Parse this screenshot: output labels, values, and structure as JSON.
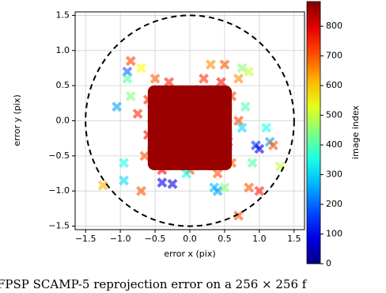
{
  "chart_data": {
    "type": "scatter",
    "xlabel": "error x (pix)",
    "ylabel": "error y (pix)",
    "xlim": [
      -1.65,
      1.65
    ],
    "ylim": [
      -1.55,
      1.55
    ],
    "xticks": [
      {
        "value": -1.5,
        "label": "−1.5"
      },
      {
        "value": -1.0,
        "label": "−1.0"
      },
      {
        "value": -0.5,
        "label": "−0.5"
      },
      {
        "value": 0.0,
        "label": "0.0"
      },
      {
        "value": 0.5,
        "label": "0.5"
      },
      {
        "value": 1.0,
        "label": "1.0"
      },
      {
        "value": 1.5,
        "label": "1.5"
      }
    ],
    "yticks": [
      {
        "value": -1.5,
        "label": "−1.5"
      },
      {
        "value": -1.0,
        "label": "−1.0"
      },
      {
        "value": -0.5,
        "label": "−0.5"
      },
      {
        "value": 0.0,
        "label": "0.0"
      },
      {
        "value": 0.5,
        "label": "0.5"
      },
      {
        "value": 1.0,
        "label": "1.0"
      },
      {
        "value": 1.5,
        "label": "1.5"
      }
    ],
    "grid": true,
    "reference_circle_radius": 1.5,
    "colorbar": {
      "label": "image index",
      "colormap": "jet",
      "clim": [
        0,
        883
      ],
      "ticks": [
        0,
        100,
        200,
        300,
        400,
        500,
        600,
        700,
        800
      ]
    },
    "points": {
      "x": [
        -0.4,
        -0.2,
        0,
        0.2,
        0.4,
        -0.4,
        -0.2,
        0,
        0.2,
        0.4,
        -0.4,
        -0.2,
        0,
        0.2,
        0.4,
        -0.4,
        -0.2,
        0,
        0.2,
        0.4,
        -0.4,
        -0.2,
        0,
        0.2,
        0.4,
        -0.6,
        -0.6,
        -0.65,
        0.6,
        0.55,
        0.6,
        -0.3,
        0.2,
        0,
        -0.4,
        0.4,
        -0.75,
        0.7,
        -0.5,
        0.45,
        -0.85,
        -0.9,
        -0.9,
        -0.7,
        0.3,
        0.5,
        0.75,
        0.85,
        0.7,
        1.1,
        1.15,
        0.95,
        1.0,
        1.3,
        1.2,
        0.9,
        -0.95,
        -0.95,
        -1.25,
        -0.4,
        -0.25,
        0.5,
        0.85,
        1.0,
        -0.7,
        0.35,
        0.4,
        0.7,
        -1.05,
        -0.85,
        0.8,
        0.75,
        -0.05,
        0.55
      ],
      "y": [
        -0.5,
        -0.5,
        -0.5,
        -0.5,
        -0.5,
        -0.3,
        -0.3,
        -0.3,
        -0.3,
        -0.3,
        -0.1,
        -0.1,
        -0.1,
        -0.1,
        -0.1,
        0.1,
        0.1,
        0.1,
        0.1,
        0.1,
        0.3,
        0.3,
        0.3,
        0.3,
        0.3,
        0.3,
        -0.2,
        -0.5,
        0.35,
        -0.3,
        -0.6,
        0.55,
        0.6,
        -0.7,
        -0.7,
        -0.75,
        0.1,
        0.0,
        0.6,
        0.55,
        0.85,
        0.7,
        0.6,
        0.75,
        0.8,
        0.8,
        0.75,
        0.7,
        0.6,
        -0.1,
        -0.3,
        -0.35,
        -0.4,
        -0.65,
        -0.35,
        -0.6,
        -0.6,
        -0.85,
        -0.92,
        -0.88,
        -0.9,
        -0.95,
        -0.95,
        -1.0,
        -1.0,
        -0.95,
        -1.0,
        -1.35,
        0.2,
        0.35,
        0.2,
        -0.1,
        -0.75,
        -0.6
      ],
      "c": [
        860,
        860,
        860,
        860,
        860,
        860,
        860,
        860,
        860,
        860,
        860,
        860,
        860,
        860,
        860,
        860,
        860,
        860,
        860,
        860,
        860,
        860,
        860,
        860,
        860,
        740,
        760,
        700,
        720,
        780,
        690,
        750,
        730,
        710,
        770,
        700,
        740,
        720,
        690,
        760,
        720,
        200,
        400,
        550,
        650,
        700,
        450,
        500,
        650,
        350,
        250,
        150,
        100,
        500,
        700,
        400,
        350,
        300,
        620,
        100,
        80,
        450,
        700,
        750,
        700,
        280,
        250,
        700,
        250,
        450,
        400,
        300,
        350,
        550
      ]
    },
    "caption": "FPSP SCAMP-5 reprojection error on a 256 × 256 f"
  }
}
